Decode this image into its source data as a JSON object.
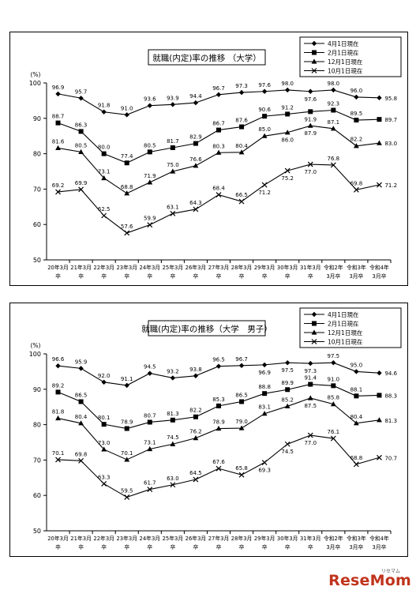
{
  "colors": {
    "line": "#000000",
    "background": "#ffffff",
    "watermark": "#c0341d"
  },
  "watermark": {
    "small": "リセマム",
    "main": "ReseMom"
  },
  "chart_data": [
    {
      "type": "line",
      "title": "就職(内定)率の推移 （大学）",
      "ylabel": "(%)",
      "ylim": [
        50,
        100
      ],
      "yticks": [
        "50",
        "60",
        "70",
        "80",
        "90",
        "100"
      ],
      "grid": false,
      "legend_position": "top-right",
      "categories": [
        {
          "l1": "20年3月",
          "l2": "卒"
        },
        {
          "l1": "21年3月",
          "l2": "卒"
        },
        {
          "l1": "22年3月",
          "l2": "卒"
        },
        {
          "l1": "23年3月",
          "l2": "卒"
        },
        {
          "l1": "24年3月",
          "l2": "卒"
        },
        {
          "l1": "25年3月",
          "l2": "卒"
        },
        {
          "l1": "26年3月",
          "l2": "卒"
        },
        {
          "l1": "27年3月",
          "l2": "卒"
        },
        {
          "l1": "28年3月",
          "l2": "卒"
        },
        {
          "l1": "29年3月",
          "l2": "卒"
        },
        {
          "l1": "30年3月",
          "l2": "卒"
        },
        {
          "l1": "31年3月",
          "l2": "卒"
        },
        {
          "l1": "令和2年",
          "l2": "3月卒"
        },
        {
          "l1": "令和3年",
          "l2": "3月卒"
        },
        {
          "l1": "令和4年",
          "l2": "3月卒"
        }
      ],
      "series": [
        {
          "name": "4月1日現在",
          "marker": "diamond",
          "values": [
            96.9,
            95.7,
            91.8,
            91.0,
            93.6,
            93.9,
            94.4,
            96.7,
            97.3,
            97.6,
            98.0,
            97.6,
            98.0,
            96.0,
            95.8
          ],
          "labels": [
            "96.9",
            "95.7",
            "91.8",
            "91.0",
            "93.6",
            "93.9",
            "94.4",
            "96.7",
            "97.3",
            "97.6",
            "98.0",
            "97.6",
            "98.0",
            "96.0",
            "95.8"
          ],
          "label_pos": [
            "above",
            "above",
            "above",
            "above",
            "above",
            "above",
            "above",
            "above",
            "above",
            "above",
            "above",
            "below",
            "above",
            "above",
            "right"
          ]
        },
        {
          "name": "2月1日現在",
          "marker": "square",
          "values": [
            88.7,
            86.3,
            80.0,
            77.4,
            80.5,
            81.7,
            82.9,
            86.7,
            87.6,
            90.6,
            91.2,
            91.9,
            92.3,
            89.5,
            89.7
          ],
          "labels": [
            "88.7",
            "86.3",
            "80.0",
            "77.4",
            "80.5",
            "81.7",
            "82.9",
            "86.7",
            "87.6",
            "90.6",
            "91.2",
            "91.9",
            "92.3",
            "89.5",
            "89.7"
          ],
          "label_pos": [
            "above",
            "above",
            "above",
            "above",
            "above",
            "above",
            "above",
            "above",
            "above",
            "above",
            "above",
            "below",
            "above",
            "above",
            "right"
          ]
        },
        {
          "name": "12月1日現在",
          "marker": "triangle",
          "values": [
            81.6,
            80.5,
            73.1,
            68.8,
            71.9,
            75.0,
            76.6,
            80.3,
            80.4,
            85.0,
            86.0,
            87.9,
            87.1,
            82.2,
            83.0
          ],
          "labels": [
            "81.6",
            "80.5",
            "73.1",
            "68.8",
            "71.9",
            "75.0",
            "76.6",
            "80.3",
            "80.4",
            "85.0",
            "86.0",
            "87.9",
            "87.1",
            "82.2",
            "83.0"
          ],
          "label_pos": [
            "above",
            "above",
            "above",
            "above",
            "above",
            "above",
            "above",
            "above",
            "above",
            "above",
            "below",
            "below",
            "above",
            "above",
            "right"
          ]
        },
        {
          "name": "10月1日現在",
          "marker": "x",
          "values": [
            69.2,
            69.9,
            62.5,
            57.6,
            59.9,
            63.1,
            64.3,
            68.4,
            66.5,
            71.2,
            75.2,
            77.0,
            76.8,
            69.8,
            71.2
          ],
          "labels": [
            "69.2",
            "69.9",
            "62.5",
            "57.6",
            "59.9",
            "63.1",
            "64.3",
            "68.4",
            "66.5",
            "71.2",
            "75.2",
            "77.0",
            "76.8",
            "69.8",
            "71.2"
          ],
          "label_pos": [
            "above",
            "above",
            "above",
            "above",
            "above",
            "above",
            "above",
            "above",
            "above",
            "below",
            "below",
            "below",
            "above",
            "above",
            "right"
          ]
        }
      ]
    },
    {
      "type": "line",
      "title": "就職(内定)率の推移（大学　男子）",
      "ylabel": "(%)",
      "ylim": [
        50,
        100
      ],
      "yticks": [
        "50",
        "60",
        "70",
        "80",
        "90",
        "100"
      ],
      "grid": false,
      "legend_position": "top-right",
      "categories": [
        {
          "l1": "20年3月",
          "l2": "卒"
        },
        {
          "l1": "21年3月",
          "l2": "卒"
        },
        {
          "l1": "22年3月",
          "l2": "卒"
        },
        {
          "l1": "23年3月",
          "l2": "卒"
        },
        {
          "l1": "24年3月",
          "l2": "卒"
        },
        {
          "l1": "25年3月",
          "l2": "卒"
        },
        {
          "l1": "26年3月",
          "l2": "卒"
        },
        {
          "l1": "27年3月",
          "l2": "卒"
        },
        {
          "l1": "28年3月",
          "l2": "卒"
        },
        {
          "l1": "29年3月",
          "l2": "卒"
        },
        {
          "l1": "30年3月",
          "l2": "卒"
        },
        {
          "l1": "31年3月",
          "l2": "卒"
        },
        {
          "l1": "令和2年",
          "l2": "3月卒"
        },
        {
          "l1": "令和3年",
          "l2": "3月卒"
        },
        {
          "l1": "令和4年",
          "l2": "3月卒"
        }
      ],
      "series": [
        {
          "name": "4月1日現在",
          "marker": "diamond",
          "values": [
            96.6,
            95.9,
            92.0,
            91.1,
            94.5,
            93.2,
            93.8,
            96.5,
            96.7,
            96.9,
            97.5,
            97.3,
            97.5,
            95.0,
            94.6
          ],
          "labels": [
            "96.6",
            "95.9",
            "92.0",
            "91.1",
            "94.5",
            "93.2",
            "93.8",
            "96.5",
            "96.7",
            "96.9",
            "97.5",
            "97.3",
            "97.5",
            "95.0",
            "94.6"
          ],
          "label_pos": [
            "above",
            "above",
            "above",
            "above",
            "above",
            "above",
            "above",
            "above",
            "above",
            "below",
            "below",
            "below",
            "above",
            "above",
            "right"
          ]
        },
        {
          "name": "2月1日現在",
          "marker": "square",
          "values": [
            89.2,
            86.5,
            80.1,
            78.9,
            80.7,
            81.3,
            82.2,
            85.3,
            86.5,
            88.8,
            89.9,
            91.4,
            91.0,
            88.1,
            88.3
          ],
          "labels": [
            "89.2",
            "86.5",
            "80.1",
            "78.9",
            "80.7",
            "81.3",
            "82.2",
            "85.3",
            "86.5",
            "88.8",
            "89.9",
            "91.4",
            "91.0",
            "88.1",
            "88.3"
          ],
          "label_pos": [
            "above",
            "above",
            "above",
            "above",
            "above",
            "above",
            "above",
            "above",
            "above",
            "above",
            "above",
            "above",
            "above",
            "above",
            "right"
          ]
        },
        {
          "name": "12月1日現在",
          "marker": "triangle",
          "values": [
            81.8,
            80.4,
            73.0,
            70.1,
            73.1,
            74.5,
            76.2,
            78.9,
            79.0,
            83.1,
            85.2,
            87.5,
            85.8,
            80.4,
            81.3
          ],
          "labels": [
            "81.8",
            "80.4",
            "73.0",
            "70.1",
            "73.1",
            "74.5",
            "76.2",
            "78.9",
            "79.0",
            "83.1",
            "85.2",
            "87.5",
            "85.8",
            "80.4",
            "81.3"
          ],
          "label_pos": [
            "above",
            "above",
            "above",
            "above",
            "above",
            "above",
            "above",
            "above",
            "above",
            "above",
            "above",
            "below",
            "above",
            "above",
            "right"
          ]
        },
        {
          "name": "10月1日現在",
          "marker": "x",
          "values": [
            70.1,
            69.8,
            63.3,
            59.5,
            61.7,
            63.0,
            64.5,
            67.6,
            65.8,
            69.3,
            74.5,
            77.0,
            76.1,
            68.8,
            70.7
          ],
          "labels": [
            "70.1",
            "69.8",
            "63.3",
            "59.5",
            "61.7",
            "63.0",
            "64.5",
            "67.6",
            "65.8",
            "69.3",
            "74.5",
            "77.0",
            "76.1",
            "68.8",
            "70.7"
          ],
          "label_pos": [
            "above",
            "above",
            "above",
            "above",
            "above",
            "above",
            "above",
            "above",
            "above",
            "below",
            "below",
            "below",
            "above",
            "above",
            "right"
          ]
        }
      ]
    }
  ]
}
